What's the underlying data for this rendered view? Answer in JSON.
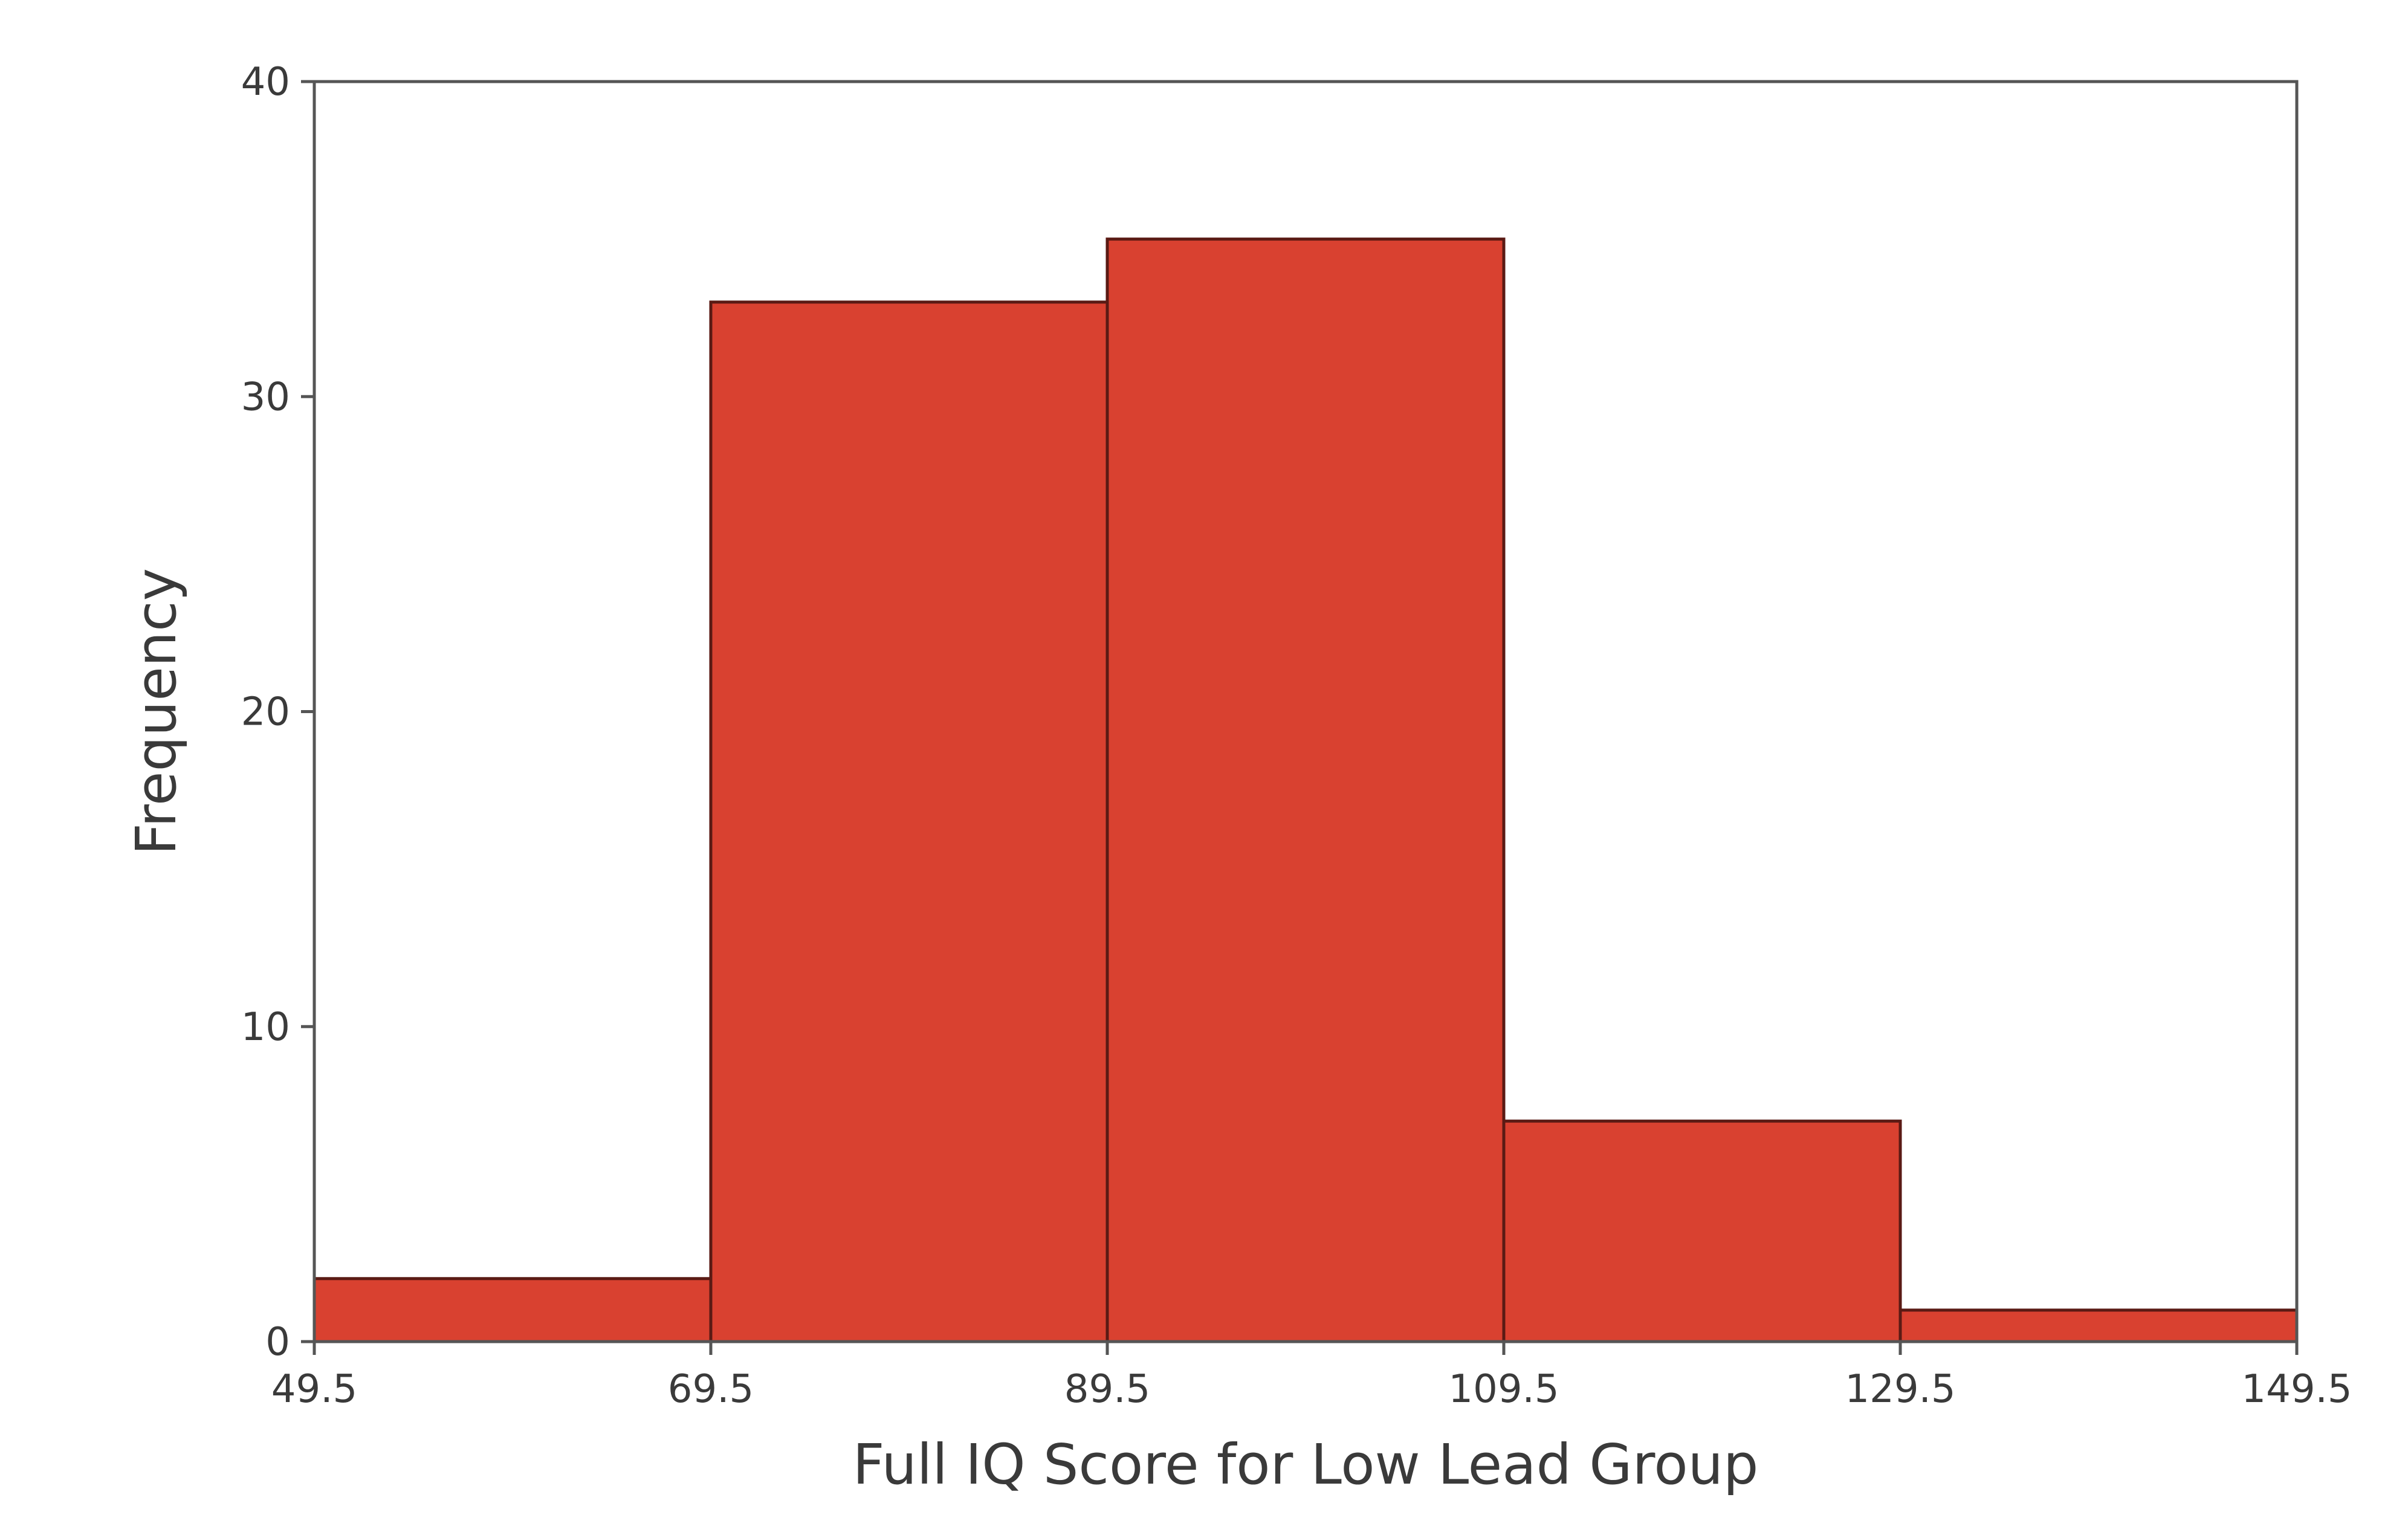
{
  "chart_data": {
    "type": "bar",
    "subtype": "histogram",
    "bins": [
      {
        "start": 49.5,
        "end": 69.5,
        "value": 2
      },
      {
        "start": 69.5,
        "end": 89.5,
        "value": 33
      },
      {
        "start": 89.5,
        "end": 109.5,
        "value": 35
      },
      {
        "start": 109.5,
        "end": 129.5,
        "value": 7
      },
      {
        "start": 129.5,
        "end": 149.5,
        "value": 1
      }
    ],
    "x_ticks": [
      "49.5",
      "69.5",
      "89.5",
      "109.5",
      "129.5",
      "149.5"
    ],
    "y_ticks": [
      "0",
      "10",
      "20",
      "30",
      "40"
    ],
    "xlabel": "Full IQ Score for Low Lead Group",
    "ylabel": "Frequency",
    "title": "",
    "xlim": [
      49.5,
      149.5
    ],
    "ylim": [
      0,
      40
    ],
    "grid": false,
    "bar_color": "#d94130"
  }
}
